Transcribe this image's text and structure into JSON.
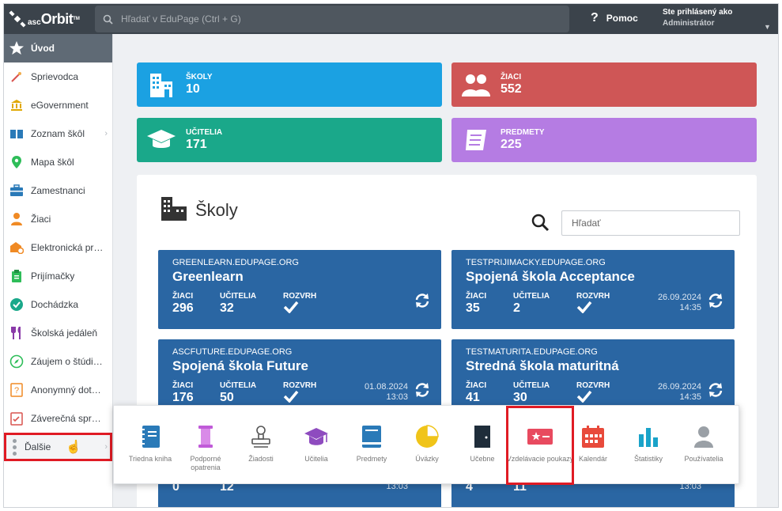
{
  "topbar": {
    "logo_small": "asc",
    "logo_big": "Orbit",
    "logo_tm": "TM",
    "search_placeholder": "Hľadať v EduPage (Ctrl + G)",
    "help": "Pomoc",
    "user_line1": "Ste prihlásený ako",
    "user_line2": "Administrátor"
  },
  "sidebar": {
    "items": [
      {
        "label": "Úvod",
        "icon": "star-icon"
      },
      {
        "label": "Sprievodca",
        "icon": "wand-icon"
      },
      {
        "label": "eGovernment",
        "icon": "bank-icon"
      },
      {
        "label": "Zoznam škôl",
        "icon": "map-book-icon"
      },
      {
        "label": "Mapa škôl",
        "icon": "pin-icon"
      },
      {
        "label": "Zamestnanci",
        "icon": "briefcase-icon"
      },
      {
        "label": "Žiaci",
        "icon": "student-icon"
      },
      {
        "label": "Elektronická pr…",
        "icon": "application-icon"
      },
      {
        "label": "Prijímačky",
        "icon": "clipboard-icon"
      },
      {
        "label": "Dochádzka",
        "icon": "check-circle-icon"
      },
      {
        "label": "Školská jedáleň",
        "icon": "cutlery-icon"
      },
      {
        "label": "Záujem o štúdi…",
        "icon": "compass-icon"
      },
      {
        "label": "Anonymný dot…",
        "icon": "question-icon"
      },
      {
        "label": "Záverečná spr…",
        "icon": "report-icon"
      },
      {
        "label": "Ďalšie",
        "icon": "dots-icon"
      }
    ]
  },
  "tiles": [
    {
      "label": "ŠKOLY",
      "value": "10",
      "color": "#1ba1e2"
    },
    {
      "label": "ŽIACI",
      "value": "552",
      "color": "#cf5656"
    },
    {
      "label": "UČITELIA",
      "value": "171",
      "color": "#1aa88a"
    },
    {
      "label": "PREDMETY",
      "value": "225",
      "color": "#b57ce3"
    }
  ],
  "schools": {
    "title": "Školy",
    "search_placeholder": "Hľadať",
    "cards": [
      {
        "domain": "GREENLEARN.EDUPAGE.ORG",
        "name": "Greenlearn",
        "ziaci_label": "ŽIACI",
        "ziaci": "296",
        "ucitelia_label": "UČITELIA",
        "ucitelia": "32",
        "rozvrh_label": "ROZVRH",
        "date": "",
        "time": ""
      },
      {
        "domain": "TESTPRIJIMACKY.EDUPAGE.ORG",
        "name": "Spojená škola Acceptance",
        "ziaci_label": "ŽIACI",
        "ziaci": "35",
        "ucitelia_label": "UČITELIA",
        "ucitelia": "2",
        "rozvrh_label": "ROZVRH",
        "date": "26.09.2024",
        "time": "14:35"
      },
      {
        "domain": "ASCFUTURE.EDUPAGE.ORG",
        "name": "Spojená škola Future",
        "ziaci_label": "ŽIACI",
        "ziaci": "176",
        "ucitelia_label": "UČITELIA",
        "ucitelia": "50",
        "rozvrh_label": "ROZVRH",
        "date": "01.08.2024",
        "time": "13:03"
      },
      {
        "domain": "TESTMATURITA.EDUPAGE.ORG",
        "name": "Stredná škola maturitná",
        "ziaci_label": "ŽIACI",
        "ziaci": "41",
        "ucitelia_label": "UČITELIA",
        "ucitelia": "30",
        "rozvrh_label": "ROZVRH",
        "date": "26.09.2024",
        "time": "14:35"
      },
      {
        "domain": "",
        "name": "",
        "ziaci_label": "",
        "ziaci": "0",
        "ucitelia_label": "",
        "ucitelia": "12",
        "rozvrh_label": "",
        "date": "",
        "time": "13:03"
      },
      {
        "domain": "",
        "name": "",
        "ziaci_label": "",
        "ziaci": "4",
        "ucitelia_label": "",
        "ucitelia": "11",
        "rozvrh_label": "",
        "date": "",
        "time": "13:03"
      }
    ]
  },
  "popup": {
    "items": [
      {
        "label": "Triedna kniha",
        "icon": "notebook-icon"
      },
      {
        "label": "Podporné opatrenia",
        "icon": "pillar-icon"
      },
      {
        "label": "Žiadosti",
        "icon": "stamp-icon"
      },
      {
        "label": "Učitelia",
        "icon": "graduation-cap-icon"
      },
      {
        "label": "Predmety",
        "icon": "book-icon"
      },
      {
        "label": "Úväzky",
        "icon": "pie-chart-icon"
      },
      {
        "label": "Učebne",
        "icon": "door-icon"
      },
      {
        "label": "Vzdelávacie poukazy",
        "icon": "voucher-icon"
      },
      {
        "label": "Kalendár",
        "icon": "calendar-icon"
      },
      {
        "label": "Štatistiky",
        "icon": "bar-chart-icon"
      },
      {
        "label": "Používatelia",
        "icon": "user-icon"
      }
    ]
  }
}
